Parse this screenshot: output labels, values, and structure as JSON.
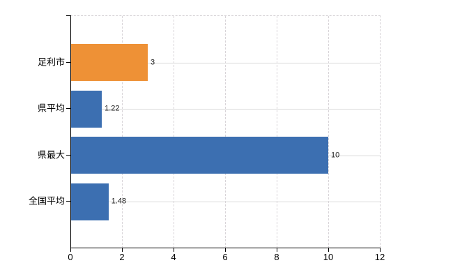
{
  "chart_data": {
    "type": "bar",
    "orientation": "horizontal",
    "title": "",
    "xlabel": "",
    "ylabel": "",
    "categories": [
      "足利市",
      "県平均",
      "県最大",
      "全国平均"
    ],
    "values": [
      3,
      1.22,
      10,
      1.48
    ],
    "data_labels": [
      "3",
      "1.22",
      "10",
      "1.48"
    ],
    "bar_colors": [
      "#EE9136",
      "#3C6FB1",
      "#3C6FB1",
      "#3C6FB1"
    ],
    "x_ticks": [
      0,
      2,
      4,
      6,
      8,
      10,
      12
    ],
    "xlim": [
      0,
      12
    ],
    "grid": true,
    "legend": false
  },
  "colors": {
    "background": "#FFFFFF",
    "axis": "#000000",
    "h_gridline": "#D9D9D9",
    "v_gridline": "#D8D4D8",
    "plot_border": "#D4D0D4",
    "text": "#000000",
    "value_label_text": "#1A1A1A"
  }
}
